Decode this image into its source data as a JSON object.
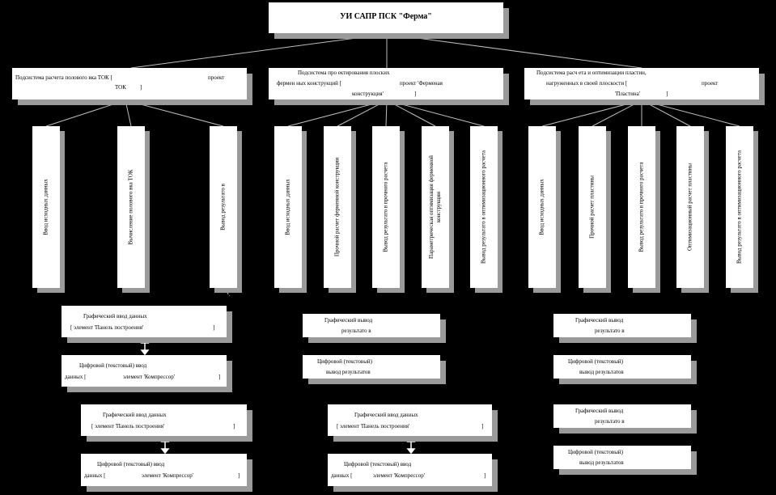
{
  "title": "УИ САПР ПСК \"Ферма\"",
  "sub1": {
    "line1": "Подсистема расчета полового вка ТОК [",
    "line1b": "проект",
    "line2": "ТОК",
    "line2b": "]",
    "items": [
      "Ввод исходных данных",
      "Вычисление полового вка ТОК",
      "Вывод результато в"
    ]
  },
  "sub2": {
    "line1": "Подсистема про ектирования плоских",
    "line2": "фермен ных конструкций [",
    "line2b": "проект 'Ферменая",
    "line3": "конструкция'",
    "line3b": "]",
    "items": [
      "Ввод исходных данных",
      "Прочной расчет ферменной конструкции",
      "Вывод результато в прочного расчета",
      "Параметрическая оптимизация ферменной конструкции",
      "Вывод результато в оптимизационного расчета"
    ]
  },
  "sub3": {
    "line1": "Подсистема расч ета и оптимизации пластин,",
    "line2": "нагруженных в своей плоскости [",
    "line2b": "проект",
    "line3": "'Пластина'",
    "line3b": "]",
    "items": [
      "Ввод исходных данных",
      "Прочной расчет пластины",
      "Вывод результато в прочного расчета",
      "Оптимизационный расчет пластины",
      "Вывод результато в оптимизационного расчета"
    ]
  },
  "io": {
    "graphic_input_a": "Графический ввод данных",
    "graphic_input_b": "[ элемент 'Панель построения'",
    "numeric_input_a": "Цифровой (текстовый) ввод",
    "numeric_input_b": "данных [",
    "numeric_input_c": "элемент 'Компрессор'",
    "graphic_output_a": "Графический вывод",
    "graphic_output_b": "результато в",
    "numeric_output_a": "Цифровой (текстовый)",
    "numeric_output_b": "вывод результатов",
    "close": "]"
  }
}
